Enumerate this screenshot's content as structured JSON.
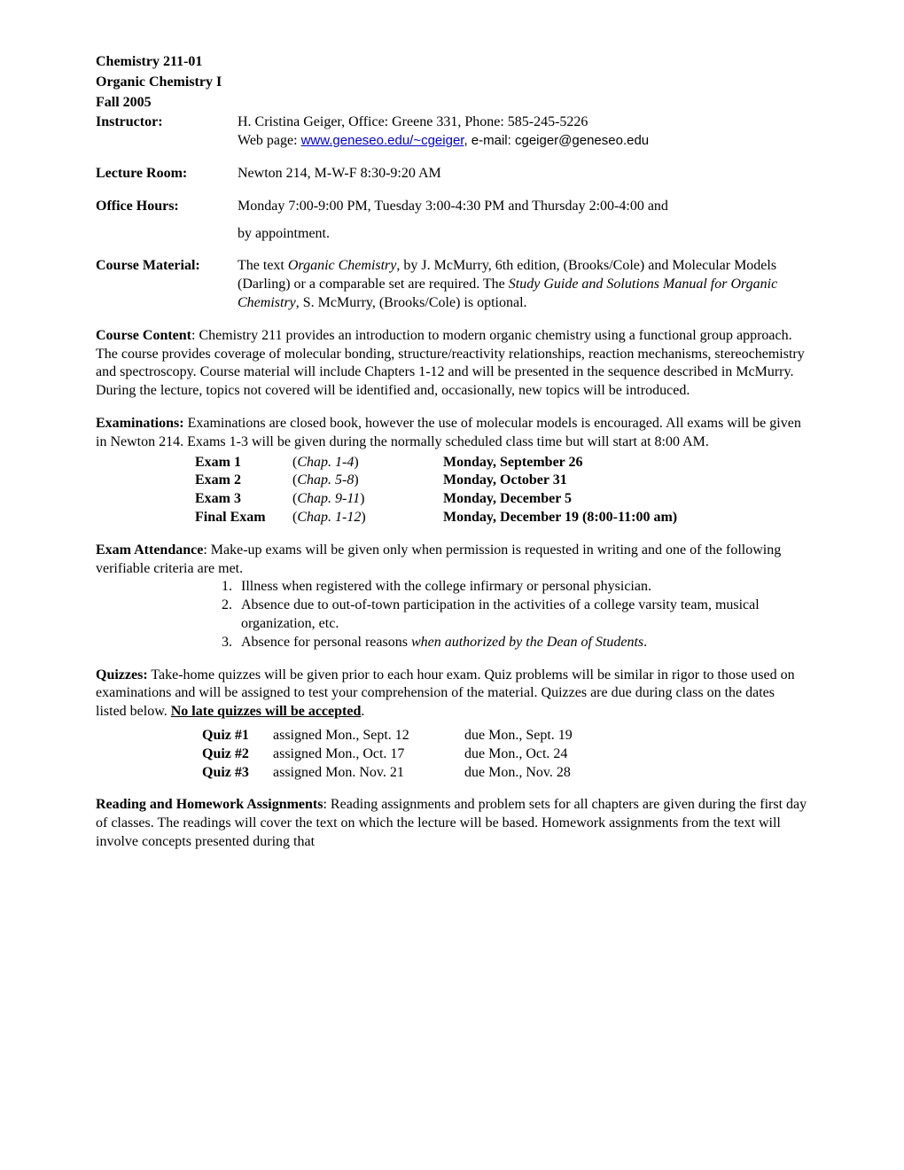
{
  "header": {
    "course_code": "Chemistry 211-01",
    "course_title": "Organic Chemistry I",
    "term": "Fall 2005"
  },
  "instructor": {
    "label": "Instructor",
    "name_line": "H. Cristina Geiger, Office: Greene 331, Phone: 585-245-5226",
    "web_prefix": "Web page: ",
    "web_link": "www.geneseo.edu/~cgeiger",
    "email_prefix": ", e-mail: cgeiger@geneseo.edu"
  },
  "lecture_room": {
    "label": "Lecture Room:",
    "value": "Newton 214, M-W-F 8:30-9:20 AM"
  },
  "office_hours": {
    "label": "Office Hours",
    "line1": "Monday 7:00-9:00 PM, Tuesday 3:00-4:30 PM and Thursday 2:00-4:00 and",
    "line2": "by appointment."
  },
  "course_material": {
    "label": "Course Material",
    "pre1": "The text ",
    "italic1": "Organic Chemistry",
    "mid1": ", by J. McMurry, 6th edition, (Brooks/Cole) and Molecular Models (Darling) or a comparable set are required. The ",
    "italic2": "Study Guide and Solutions Manual for Organic Chemistry",
    "post1": ", S. McMurry, (Brooks/Cole) is optional."
  },
  "course_content": {
    "label": "Course Content",
    "text": ":  Chemistry 211 provides an introduction to modern organic chemistry using a functional group approach.  The course provides coverage of molecular bonding, structure/reactivity relationships, reaction mechanisms, stereochemistry and spectroscopy.  Course material will include Chapters 1-12 and will be presented in the sequence described in McMurry.  During the lecture, topics not covered will be identified and, occasionally, new topics will be introduced."
  },
  "examinations": {
    "label": "Examinations:",
    "intro": "  Examinations are closed book, however the use of molecular models is encouraged.  All exams will be given in Newton 214. Exams 1-3 will be given during the normally scheduled class time but will start at 8:00 AM."
  },
  "exams": [
    {
      "name": "Exam 1",
      "chapters": "Chap. 1-4",
      "date": "Monday, September 26"
    },
    {
      "name": "Exam 2",
      "chapters": "Chap. 5-8",
      "date": "Monday, October 31"
    },
    {
      "name": "Exam 3",
      "chapters": "Chap. 9-11",
      "date": "Monday, December 5"
    },
    {
      "name": "Final Exam",
      "chapters": "Chap. 1-12",
      "date": "Monday, December 19 (8:00-11:00 am)"
    }
  ],
  "exam_attendance": {
    "label": "Exam Attendance",
    "text": ":  Make-up exams will be given only when permission is requested in writing and one of the following verifiable criteria are met.",
    "items": [
      {
        "num": "1.",
        "text": "Illness when registered with the college infirmary or personal physician."
      },
      {
        "num": "2.",
        "text": "Absence due to out-of-town participation in the activities of a college varsity team, musical organization, etc."
      },
      {
        "num": "3.",
        "text_pre": "Absence for personal reasons ",
        "text_italic": "when authorized by the Dean of Students",
        "text_post": "."
      }
    ]
  },
  "quizzes": {
    "label": "Quizzes:",
    "text_pre": "   Take-home quizzes will be given prior to each hour exam.  Quiz problems will be similar in rigor to those used on examinations and will be assigned to test your comprehension of the material.   Quizzes are due during class on the dates listed below.   ",
    "underline1": "No late quizzes will be accepted",
    "text_post": "."
  },
  "quiz_list": [
    {
      "name": "Quiz #1",
      "assigned": "assigned  Mon., Sept. 12",
      "due": "due  Mon., Sept. 19"
    },
    {
      "name": "Quiz #2",
      "assigned": "assigned  Mon., Oct. 17",
      "due": "due  Mon., Oct. 24"
    },
    {
      "name": "Quiz #3",
      "assigned": "assigned  Mon. Nov. 21",
      "due": "due  Mon., Nov. 28"
    }
  ],
  "reading": {
    "label": "Reading and Homework Assignments",
    "text": ":  Reading assignments and problem sets for all chapters are given during the first day of classes. The readings will cover the text on which the lecture will be based.  Homework assignments from the text will involve concepts presented during that"
  }
}
